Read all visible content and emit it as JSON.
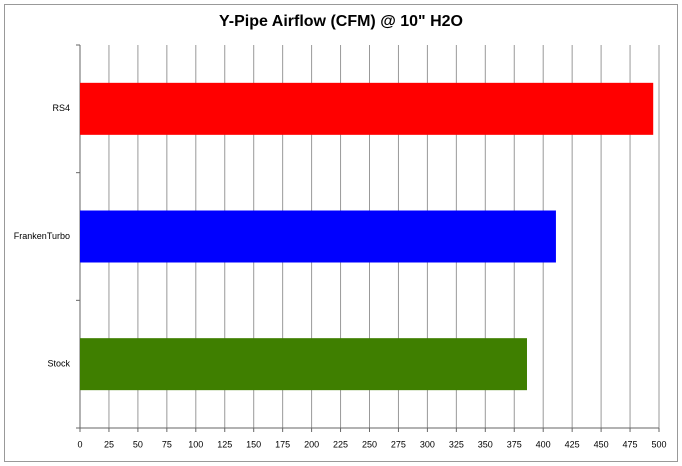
{
  "chart_data": {
    "type": "bar",
    "orientation": "horizontal",
    "title": "Y-Pipe Airflow (CFM) @ 10\" H2O",
    "categories": [
      "RS4",
      "FrankenTurbo",
      "Stock"
    ],
    "values": [
      495,
      411,
      386
    ],
    "colors": [
      "#ff0000",
      "#0000ff",
      "#3f7f00"
    ],
    "xlim": [
      0,
      500
    ],
    "xticks": [
      0,
      25,
      50,
      75,
      100,
      125,
      150,
      175,
      200,
      225,
      250,
      275,
      300,
      325,
      350,
      375,
      400,
      425,
      450,
      475,
      500
    ],
    "grid": true
  }
}
